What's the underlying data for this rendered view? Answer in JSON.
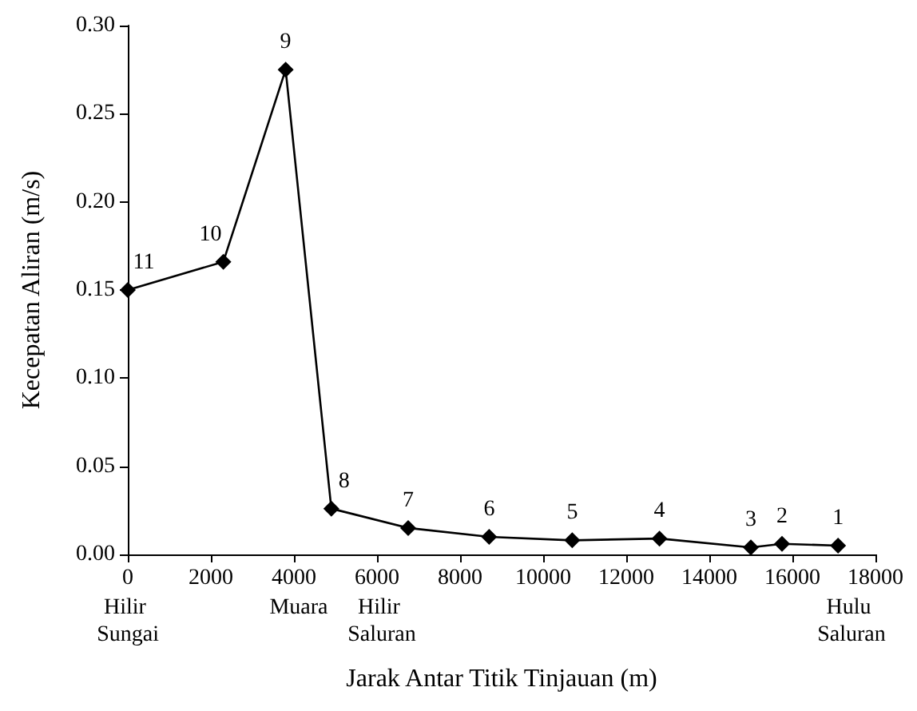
{
  "chart_data": {
    "type": "line",
    "xlabel": "Jarak Antar Titik Tinjauan (m)",
    "ylabel": "Kecepatan Aliran (m/s)",
    "x": [
      0,
      2300,
      3800,
      4900,
      6750,
      8700,
      10700,
      12800,
      15000,
      15750,
      17100
    ],
    "series": [
      {
        "color": "#000000",
        "values": [
          0.15,
          0.166,
          0.275,
          0.026,
          0.015,
          0.01,
          0.008,
          0.009,
          0.004,
          0.006,
          0.005
        ]
      }
    ],
    "xlim": [
      0,
      18000
    ],
    "xticks": [
      0,
      2000,
      4000,
      6000,
      8000,
      10000,
      12000,
      14000,
      16000,
      18000
    ],
    "ylim": [
      0,
      0.3
    ],
    "yticks": [
      {
        "value": 0,
        "label": "0.00"
      },
      {
        "value": 0.05,
        "label": "0.05"
      },
      {
        "value": 0.1,
        "label": "0.10"
      },
      {
        "value": 0.15,
        "label": "0.15"
      },
      {
        "value": 0.2,
        "label": "0.20"
      },
      {
        "value": 0.25,
        "label": "0.25"
      },
      {
        "value": 0.3,
        "label": "0.30"
      }
    ],
    "annotations": [
      {
        "text": "11",
        "x": 0,
        "y": 0.15
      },
      {
        "text": "10",
        "x": 2300,
        "y": 0.166
      },
      {
        "text": "9",
        "x": 3800,
        "y": 0.275
      },
      {
        "text": "8",
        "x": 4900,
        "y": 0.026
      },
      {
        "text": "7",
        "x": 6750,
        "y": 0.015
      },
      {
        "text": "6",
        "x": 8700,
        "y": 0.01
      },
      {
        "text": "5",
        "x": 10700,
        "y": 0.008
      },
      {
        "text": "4",
        "x": 12800,
        "y": 0.009
      },
      {
        "text": "3",
        "x": 15000,
        "y": 0.004
      },
      {
        "text": "2",
        "x": 15750,
        "y": 0.006
      },
      {
        "text": "1",
        "x": 17100,
        "y": 0.005
      },
      "Hilir Sungai",
      "Muara",
      "Hilir Saluran",
      "Hulu Saluran"
    ],
    "marker": "diamond",
    "line_style": "solid",
    "grid": false
  }
}
